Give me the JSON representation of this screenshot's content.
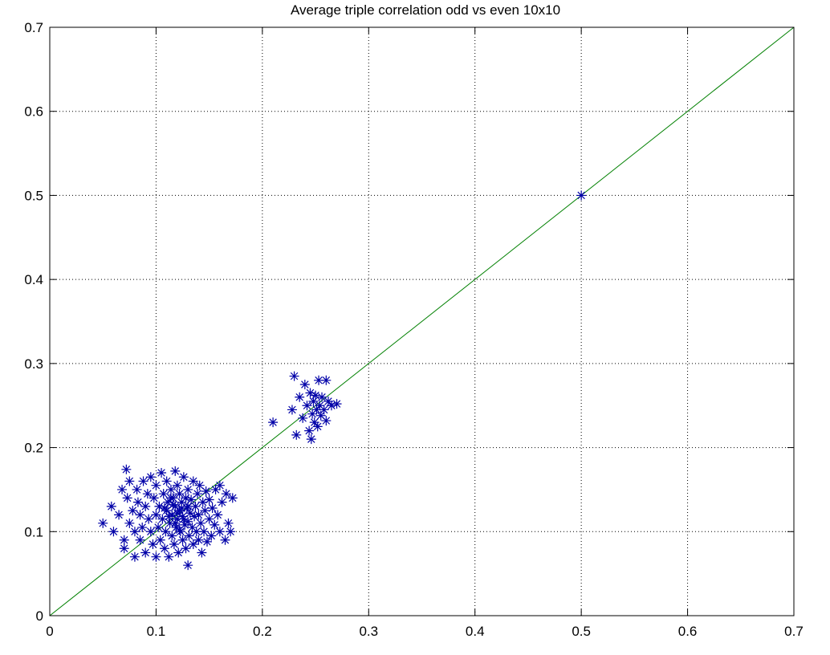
{
  "chart_data": {
    "type": "scatter",
    "title": "Average triple correlation odd vs even 10x10",
    "xlabel": "",
    "ylabel": "",
    "xlim": [
      0,
      0.7
    ],
    "ylim": [
      0,
      0.7
    ],
    "x_ticks": [
      "0",
      "0.1",
      "0.2",
      "0.3",
      "0.4",
      "0.5",
      "0.6",
      "0.7"
    ],
    "y_ticks": [
      "0",
      "0.1",
      "0.2",
      "0.3",
      "0.4",
      "0.5",
      "0.6",
      "0.7"
    ],
    "grid": true,
    "legend": "none",
    "marker": "asterisk",
    "colors": {
      "markers": "#0000a8",
      "reference_line": "#008000",
      "grid": "#000000"
    },
    "reference_line": {
      "x": [
        0,
        0.7
      ],
      "y": [
        0,
        0.7
      ]
    },
    "series": [
      {
        "points": [
          [
            0.05,
            0.11
          ],
          [
            0.058,
            0.13
          ],
          [
            0.06,
            0.1
          ],
          [
            0.065,
            0.12
          ],
          [
            0.068,
            0.15
          ],
          [
            0.07,
            0.09
          ],
          [
            0.07,
            0.08
          ],
          [
            0.072,
            0.174
          ],
          [
            0.073,
            0.14
          ],
          [
            0.075,
            0.11
          ],
          [
            0.075,
            0.16
          ],
          [
            0.078,
            0.125
          ],
          [
            0.08,
            0.1
          ],
          [
            0.08,
            0.07
          ],
          [
            0.082,
            0.15
          ],
          [
            0.083,
            0.135
          ],
          [
            0.085,
            0.12
          ],
          [
            0.085,
            0.09
          ],
          [
            0.087,
            0.105
          ],
          [
            0.088,
            0.16
          ],
          [
            0.09,
            0.13
          ],
          [
            0.09,
            0.075
          ],
          [
            0.092,
            0.145
          ],
          [
            0.093,
            0.115
          ],
          [
            0.095,
            0.1
          ],
          [
            0.095,
            0.165
          ],
          [
            0.097,
            0.085
          ],
          [
            0.098,
            0.14
          ],
          [
            0.1,
            0.12
          ],
          [
            0.1,
            0.07
          ],
          [
            0.1,
            0.155
          ],
          [
            0.102,
            0.105
          ],
          [
            0.103,
            0.13
          ],
          [
            0.104,
            0.09
          ],
          [
            0.105,
            0.17
          ],
          [
            0.106,
            0.115
          ],
          [
            0.107,
            0.145
          ],
          [
            0.108,
            0.08
          ],
          [
            0.109,
            0.1
          ],
          [
            0.11,
            0.125
          ],
          [
            0.11,
            0.16
          ],
          [
            0.111,
            0.135
          ],
          [
            0.112,
            0.07
          ],
          [
            0.113,
            0.11
          ],
          [
            0.114,
            0.15
          ],
          [
            0.115,
            0.095
          ],
          [
            0.115,
            0.12
          ],
          [
            0.116,
            0.14
          ],
          [
            0.117,
            0.085
          ],
          [
            0.118,
            0.13
          ],
          [
            0.118,
            0.172
          ],
          [
            0.119,
            0.105
          ],
          [
            0.12,
            0.115
          ],
          [
            0.12,
            0.155
          ],
          [
            0.121,
            0.075
          ],
          [
            0.122,
            0.125
          ],
          [
            0.122,
            0.145
          ],
          [
            0.123,
            0.1
          ],
          [
            0.124,
            0.135
          ],
          [
            0.125,
            0.09
          ],
          [
            0.125,
            0.118
          ],
          [
            0.126,
            0.165
          ],
          [
            0.127,
            0.108
          ],
          [
            0.128,
            0.14
          ],
          [
            0.128,
            0.08
          ],
          [
            0.129,
            0.128
          ],
          [
            0.13,
            0.06
          ],
          [
            0.13,
            0.112
          ],
          [
            0.13,
            0.15
          ],
          [
            0.131,
            0.095
          ],
          [
            0.132,
            0.122
          ],
          [
            0.133,
            0.138
          ],
          [
            0.134,
            0.105
          ],
          [
            0.135,
            0.085
          ],
          [
            0.135,
            0.16
          ],
          [
            0.136,
            0.118
          ],
          [
            0.137,
            0.13
          ],
          [
            0.138,
            0.1
          ],
          [
            0.139,
            0.145
          ],
          [
            0.14,
            0.09
          ],
          [
            0.14,
            0.12
          ],
          [
            0.141,
            0.155
          ],
          [
            0.142,
            0.11
          ],
          [
            0.143,
            0.075
          ],
          [
            0.144,
            0.135
          ],
          [
            0.145,
            0.1
          ],
          [
            0.146,
            0.125
          ],
          [
            0.147,
            0.148
          ],
          [
            0.148,
            0.088
          ],
          [
            0.15,
            0.115
          ],
          [
            0.15,
            0.138
          ],
          [
            0.152,
            0.095
          ],
          [
            0.153,
            0.128
          ],
          [
            0.155,
            0.108
          ],
          [
            0.156,
            0.15
          ],
          [
            0.158,
            0.12
          ],
          [
            0.16,
            0.1
          ],
          [
            0.16,
            0.155
          ],
          [
            0.162,
            0.135
          ],
          [
            0.165,
            0.09
          ],
          [
            0.166,
            0.145
          ],
          [
            0.168,
            0.11
          ],
          [
            0.17,
            0.1
          ],
          [
            0.172,
            0.14
          ],
          [
            0.108,
            0.128
          ],
          [
            0.112,
            0.118
          ],
          [
            0.116,
            0.132
          ],
          [
            0.12,
            0.122
          ],
          [
            0.124,
            0.128
          ],
          [
            0.118,
            0.11
          ],
          [
            0.126,
            0.115
          ],
          [
            0.114,
            0.14
          ],
          [
            0.13,
            0.13
          ],
          [
            0.122,
            0.102
          ],
          [
            0.21,
            0.23
          ],
          [
            0.228,
            0.245
          ],
          [
            0.23,
            0.285
          ],
          [
            0.232,
            0.215
          ],
          [
            0.235,
            0.26
          ],
          [
            0.238,
            0.235
          ],
          [
            0.24,
            0.275
          ],
          [
            0.242,
            0.25
          ],
          [
            0.244,
            0.22
          ],
          [
            0.245,
            0.265
          ],
          [
            0.246,
            0.21
          ],
          [
            0.247,
            0.24
          ],
          [
            0.248,
            0.255
          ],
          [
            0.249,
            0.23
          ],
          [
            0.25,
            0.262
          ],
          [
            0.251,
            0.245
          ],
          [
            0.252,
            0.225
          ],
          [
            0.253,
            0.28
          ],
          [
            0.254,
            0.25
          ],
          [
            0.255,
            0.238
          ],
          [
            0.256,
            0.26
          ],
          [
            0.258,
            0.245
          ],
          [
            0.26,
            0.28
          ],
          [
            0.26,
            0.232
          ],
          [
            0.262,
            0.255
          ],
          [
            0.265,
            0.25
          ],
          [
            0.27,
            0.252
          ],
          [
            0.5,
            0.5
          ]
        ]
      }
    ]
  }
}
